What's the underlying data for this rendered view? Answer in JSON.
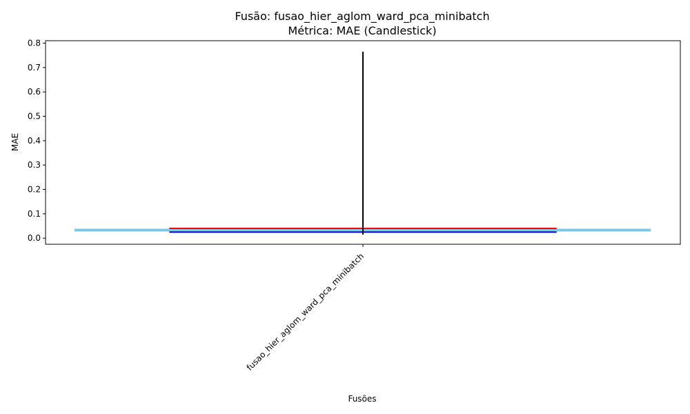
{
  "chart_data": {
    "type": "candlestick",
    "title": "Fusão: fusao_hier_aglom_ward_pca_minibatch",
    "subtitle": "Métrica: MAE (Candlestick)",
    "xlabel": "Fusões",
    "ylabel": "MAE",
    "categories": [
      "fusao_hier_aglom_ward_pca_minibatch"
    ],
    "ylim": [
      -0.025,
      0.81
    ],
    "yticks": [
      0.0,
      0.1,
      0.2,
      0.3,
      0.4,
      0.5,
      0.6,
      0.7,
      0.8
    ],
    "ytick_labels": [
      "0.0",
      "0.1",
      "0.2",
      "0.3",
      "0.4",
      "0.5",
      "0.6",
      "0.7",
      "0.8"
    ],
    "candles": [
      {
        "category": "fusao_hier_aglom_ward_pca_minibatch",
        "low": 0.015,
        "high": 0.765,
        "q1": 0.025,
        "q3": 0.04,
        "mean": 0.033
      }
    ],
    "grid": false,
    "colors": {
      "wick": "#000000",
      "q3_line": "#ff0000",
      "q1_line": "#0000cc",
      "mean_line": "#7ec8e3"
    }
  }
}
